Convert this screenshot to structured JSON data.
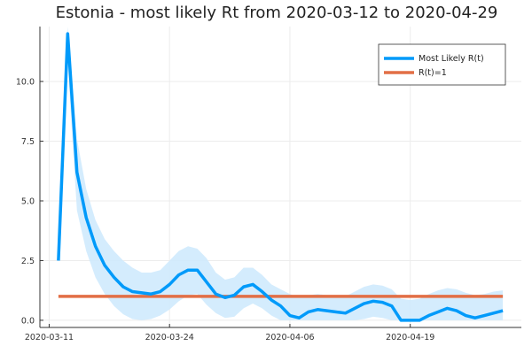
{
  "chart_data": {
    "type": "line",
    "title": "Estonia - most likely Rt from 2020-03-12 to 2020-04-29",
    "xlabel": "",
    "ylabel": "",
    "x_ticks": [
      "2020-03-11",
      "2020-03-24",
      "2020-04-06",
      "2020-04-19"
    ],
    "y_ticks": [
      "0.0",
      "2.5",
      "5.0",
      "7.5",
      "10.0"
    ],
    "xlim": [
      "2020-03-10",
      "2020-05-01"
    ],
    "ylim": [
      -0.3,
      12.3
    ],
    "grid": true,
    "legend_position": "top-right",
    "x": [
      "2020-03-12",
      "2020-03-13",
      "2020-03-14",
      "2020-03-15",
      "2020-03-16",
      "2020-03-17",
      "2020-03-18",
      "2020-03-19",
      "2020-03-20",
      "2020-03-21",
      "2020-03-22",
      "2020-03-23",
      "2020-03-24",
      "2020-03-25",
      "2020-03-26",
      "2020-03-27",
      "2020-03-28",
      "2020-03-29",
      "2020-03-30",
      "2020-03-31",
      "2020-04-01",
      "2020-04-02",
      "2020-04-03",
      "2020-04-04",
      "2020-04-05",
      "2020-04-06",
      "2020-04-07",
      "2020-04-08",
      "2020-04-09",
      "2020-04-10",
      "2020-04-11",
      "2020-04-12",
      "2020-04-13",
      "2020-04-14",
      "2020-04-15",
      "2020-04-16",
      "2020-04-17",
      "2020-04-18",
      "2020-04-19",
      "2020-04-20",
      "2020-04-21",
      "2020-04-22",
      "2020-04-23",
      "2020-04-24",
      "2020-04-25",
      "2020-04-26",
      "2020-04-27",
      "2020-04-28",
      "2020-04-29"
    ],
    "series": [
      {
        "name": "Most Likely R(t)",
        "color": "#009AFA",
        "values": [
          2.5,
          12.0,
          6.2,
          4.3,
          3.1,
          2.3,
          1.8,
          1.4,
          1.2,
          1.15,
          1.1,
          1.2,
          1.5,
          1.9,
          2.1,
          2.1,
          1.6,
          1.1,
          0.95,
          1.05,
          1.4,
          1.5,
          1.2,
          0.85,
          0.6,
          0.2,
          0.1,
          0.35,
          0.45,
          0.4,
          0.35,
          0.3,
          0.5,
          0.7,
          0.8,
          0.75,
          0.6,
          0.0,
          0.0,
          0.0,
          0.2,
          0.35,
          0.5,
          0.4,
          0.2,
          0.1,
          0.2,
          0.3,
          0.4
        ],
        "band_lower": [
          2.5,
          10.8,
          4.6,
          2.9,
          1.8,
          1.1,
          0.6,
          0.25,
          0.05,
          0.0,
          0.05,
          0.2,
          0.45,
          0.8,
          1.05,
          1.1,
          0.65,
          0.3,
          0.1,
          0.15,
          0.5,
          0.7,
          0.5,
          0.2,
          0.0,
          0.0,
          0.0,
          0.0,
          0.0,
          0.0,
          0.0,
          0.0,
          0.0,
          0.05,
          0.15,
          0.1,
          0.0,
          0.0,
          0.0,
          0.0,
          0.0,
          0.0,
          0.0,
          0.0,
          0.0,
          0.0,
          0.0,
          0.0,
          0.0
        ],
        "band_upper": [
          2.5,
          12.3,
          7.6,
          5.5,
          4.2,
          3.4,
          2.9,
          2.5,
          2.2,
          2.0,
          2.0,
          2.1,
          2.5,
          2.9,
          3.1,
          3.0,
          2.6,
          2.0,
          1.7,
          1.8,
          2.2,
          2.2,
          1.9,
          1.5,
          1.3,
          1.1,
          0.95,
          1.05,
          1.1,
          1.05,
          1.0,
          1.0,
          1.2,
          1.4,
          1.5,
          1.45,
          1.3,
          0.9,
          0.85,
          0.9,
          1.1,
          1.25,
          1.35,
          1.3,
          1.15,
          1.05,
          1.1,
          1.2,
          1.25
        ]
      },
      {
        "name": "R(t)=1",
        "color": "#E26F46",
        "values": [
          1,
          1,
          1,
          1,
          1,
          1,
          1,
          1,
          1,
          1,
          1,
          1,
          1,
          1,
          1,
          1,
          1,
          1,
          1,
          1,
          1,
          1,
          1,
          1,
          1,
          1,
          1,
          1,
          1,
          1,
          1,
          1,
          1,
          1,
          1,
          1,
          1,
          1,
          1,
          1,
          1,
          1,
          1,
          1,
          1,
          1,
          1,
          1,
          1
        ]
      }
    ],
    "band_color": "#cfeafd"
  }
}
